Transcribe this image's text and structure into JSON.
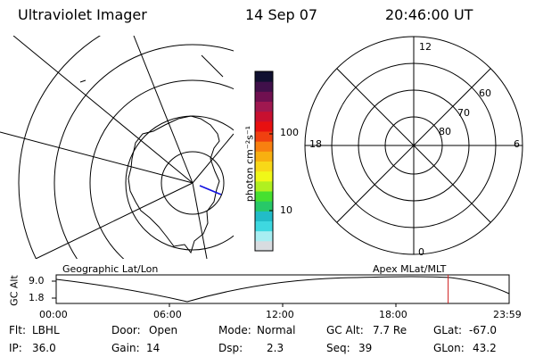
{
  "header": {
    "instrument": "Ultraviolet Imager",
    "date": "14 Sep 07",
    "time": "20:46:00 UT"
  },
  "colorbar": {
    "unit_label": "photon cm⁻²s⁻¹",
    "tick_labels": [
      "100",
      "10"
    ],
    "colors": [
      "#d8dce0",
      "#a8eef2",
      "#3ed8e0",
      "#22bcc8",
      "#28c868",
      "#46e030",
      "#b0f020",
      "#f0f818",
      "#f8d818",
      "#f8b010",
      "#f88010",
      "#f04010",
      "#e81010",
      "#c81030",
      "#a01850",
      "#701050",
      "#40104a",
      "#101030"
    ]
  },
  "geo_map": {
    "label": "Geographic Lat/Lon"
  },
  "polar_plot": {
    "label": "Apex MLat/MLT",
    "mlt_labels": {
      "top": "12",
      "left": "18",
      "right": "6",
      "bottom": "0"
    },
    "mlat_labels": [
      "60",
      "70",
      "80"
    ]
  },
  "altitude_strip": {
    "y_axis_label": "GC Alt",
    "y_ticks": [
      "9.0",
      "1.8"
    ],
    "x_ticks": [
      "00:00",
      "06:00",
      "12:00",
      "18:00",
      "23:59"
    ],
    "marker_color": "#d02020",
    "marker_time_hours": 20.767
  },
  "status": {
    "filter_label": "Flt:",
    "filter_value": "LBHL",
    "door_label": "Door:",
    "door_value": "Open",
    "mode_label": "Mode:",
    "mode_value": "Normal",
    "gcalt_label": "GC Alt:",
    "gcalt_value": "7.7 Re",
    "glat_label": "GLat:",
    "glat_value": "-67.0",
    "ip_label": "IP:",
    "ip_value": "36.0",
    "gain_label": "Gain:",
    "gain_value": "14",
    "dsp_label": "Dsp:",
    "dsp_value": "2.3",
    "seq_label": "Seq:",
    "seq_value": "39",
    "glon_label": "GLon:",
    "glon_value": "43.2"
  }
}
